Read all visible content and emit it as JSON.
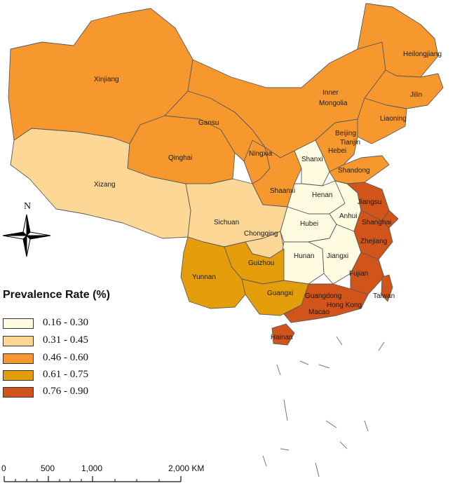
{
  "legend": {
    "title": "Prevalence Rate (%)",
    "items": [
      {
        "label": "0.16 - 0.30",
        "color": "#fffbe0"
      },
      {
        "label": "0.31 - 0.45",
        "color": "#fcd796"
      },
      {
        "label": "0.46 - 0.60",
        "color": "#f7982f"
      },
      {
        "label": "0.61 - 0.75",
        "color": "#e59e0b"
      },
      {
        "label": "0.76 - 0.90",
        "color": "#d1541a"
      }
    ]
  },
  "north_arrow": {
    "label": "N",
    "icon": "compass-rose-icon"
  },
  "scale_bar": {
    "ticks": [
      "0",
      "500",
      "1,000",
      "2,000 KM"
    ]
  },
  "provinces": {
    "xinjiang": "Xinjiang",
    "inner_mongolia_1": "Inner",
    "inner_mongolia_2": "Mongolia",
    "heilongjiang": "Heilongjiang",
    "jilin": "Jilin",
    "liaoning": "Liaoning",
    "gansu": "Gansu",
    "qinghai": "Qinghai",
    "ningxia": "Ningxia",
    "beijing": "Beijing",
    "tianjin": "Tianjin",
    "hebei": "Hebei",
    "shanxi": "Shanxi",
    "shandong": "Shandong",
    "xizang": "Xizang",
    "shaanxi": "Shaanxi",
    "henan": "Henan",
    "jiangsu": "Jiangsu",
    "anhui": "Anhui",
    "shanghai": "Shanghai",
    "sichuan": "Sichuan",
    "hubei": "Hubei",
    "chongqing": "Chongqing",
    "zhejiang": "Zhejiang",
    "hunan": "Hunan",
    "jiangxi": "Jiangxi",
    "guizhou": "Guizhou",
    "yunnan": "Yunnan",
    "fujian": "Fujian",
    "guangxi": "Guangxi",
    "taiwan": "Taiwan",
    "guangdong": "Guangdong",
    "hong_kong": "Hong Kong",
    "macao": "Macao",
    "hainan": "Hainan"
  }
}
